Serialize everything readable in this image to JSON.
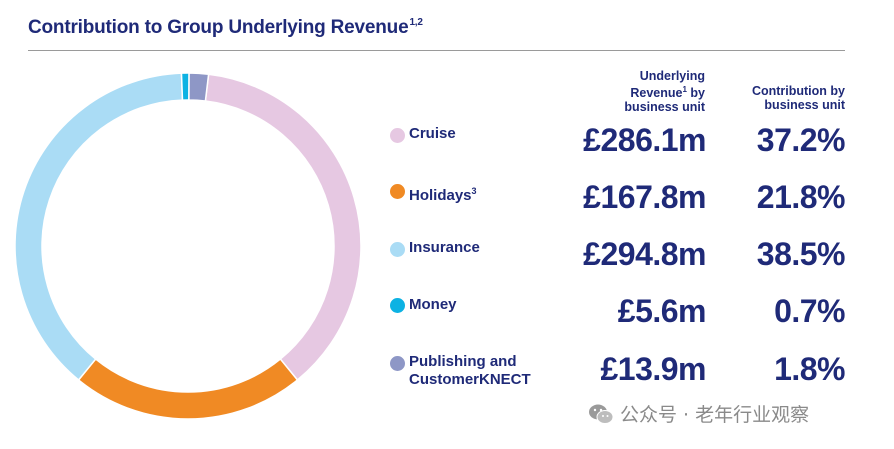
{
  "title": "Contribution to Group Underlying Revenue",
  "title_sup": "1,2",
  "headers": {
    "revenue_line1": "Underlying",
    "revenue_line2": "Revenue",
    "revenue_sup": "1",
    "revenue_line2b": " by",
    "revenue_line3": "business unit",
    "contribution_line1": "Contribution by",
    "contribution_line2": "business unit"
  },
  "rows": [
    {
      "label": "Cruise",
      "label2": "",
      "sup": "",
      "revenue": "£286.1m",
      "pct": "37.2%"
    },
    {
      "label": "Holidays",
      "label2": "",
      "sup": "3",
      "revenue": "£167.8m",
      "pct": "21.8%"
    },
    {
      "label": "Insurance",
      "label2": "",
      "sup": "",
      "revenue": "£294.8m",
      "pct": "38.5%"
    },
    {
      "label": "Money",
      "label2": "",
      "sup": "",
      "revenue": "£5.6m",
      "pct": "0.7%"
    },
    {
      "label": "Publishing and",
      "label2": "CustomerKNECT",
      "sup": "",
      "revenue": "£13.9m",
      "pct": "1.8%"
    }
  ],
  "chart_data": {
    "type": "pie",
    "style": "donut",
    "title": "Contribution to Group Underlying Revenue",
    "categories": [
      "Cruise",
      "Holidays",
      "Insurance",
      "Money",
      "Publishing and CustomerKNECT"
    ],
    "values": [
      37.2,
      21.8,
      38.5,
      0.7,
      1.8
    ],
    "revenue_labels": [
      "£286.1m",
      "£167.8m",
      "£294.8m",
      "£5.6m",
      "£13.9m"
    ],
    "colors": [
      "#e6c8e2",
      "#f08a24",
      "#aadcf5",
      "#0db2e3",
      "#8e97c6"
    ],
    "legend": "right"
  },
  "watermark": "公众号 · 老年行业观察"
}
